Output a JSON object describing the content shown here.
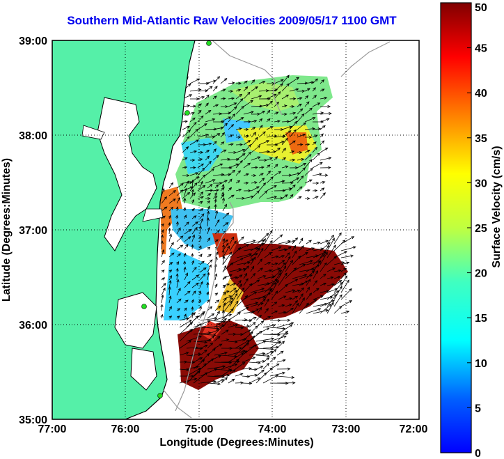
{
  "title": "Southern Mid-Atlantic Raw Velocities 2009/05/17 1100 GMT",
  "map": {
    "xlabel": "Longitude (Degrees:Minutes)",
    "ylabel": "Latitude (Degrees:Minutes)",
    "lon_ticks": [
      "77:00",
      "76:00",
      "75:00",
      "74:00",
      "73:00",
      "72:00"
    ],
    "lat_ticks": [
      "35:00",
      "36:00",
      "37:00",
      "38:00",
      "39:00"
    ],
    "lon_range": [
      -77,
      -72
    ],
    "lat_range": [
      35,
      39
    ],
    "grid": "dotted",
    "colors": {
      "land": "#55f0a8",
      "coast": "#000000",
      "bathymetry": "#9a9a9a",
      "sites": "#22dd22",
      "arrows": "#000000"
    }
  },
  "colorbar": {
    "label": "Surface Velocity (cm/s)",
    "ticks": [
      "0",
      "5",
      "10",
      "15",
      "20",
      "25",
      "30",
      "35",
      "40",
      "45",
      "50"
    ],
    "range": [
      0,
      50
    ],
    "colormap": "jet"
  }
}
